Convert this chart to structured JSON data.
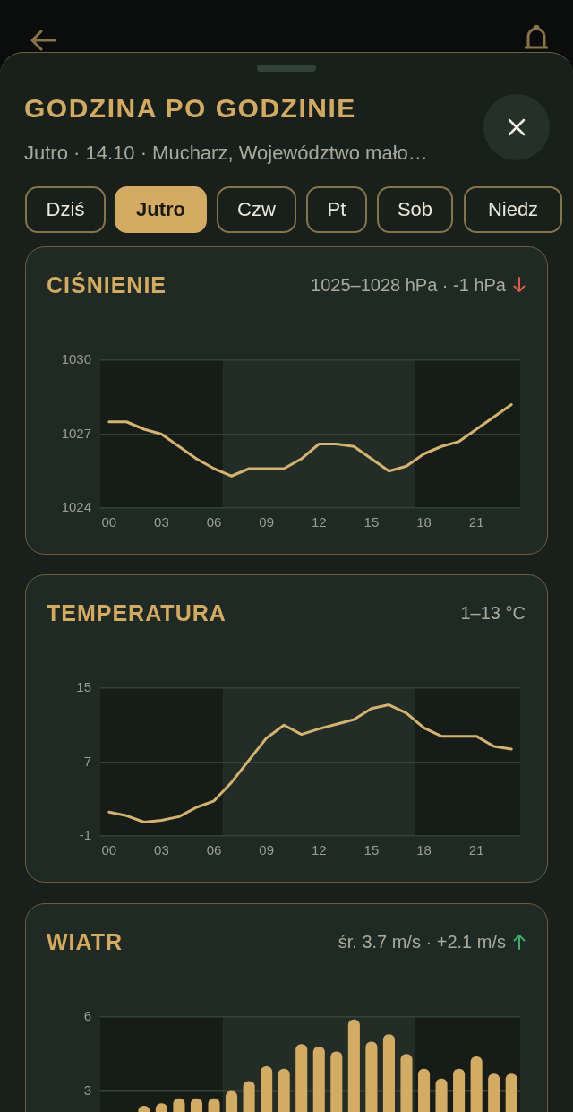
{
  "chart_data": [
    {
      "type": "other",
      "title": "GODZINA PO GODZINIE",
      "subtitle": "Jutro · 14.10 · Mucharz, Województwo mało…",
      "annotations": [
        "Dziś",
        "Jutro",
        "Czw",
        "Pt",
        "Sob",
        "Niedz"
      ]
    },
    {
      "type": "line",
      "title": "CIŚNIENIE",
      "subtitle": "1025–1028 hPa · -1 hPa",
      "x": [
        0,
        1,
        2,
        3,
        4,
        5,
        6,
        7,
        8,
        9,
        10,
        11,
        12,
        13,
        14,
        15,
        16,
        17,
        18,
        19,
        20,
        21,
        22,
        23
      ],
      "series": [
        {
          "color": "#d6b26a",
          "values": [
            1027.5,
            1027.5,
            1027.2,
            1027.0,
            1026.5,
            1026.0,
            1025.6,
            1025.3,
            1025.6,
            1025.6,
            1025.6,
            1026.0,
            1026.6,
            1026.6,
            1026.5,
            1026.0,
            1025.5,
            1025.7,
            1026.2,
            1026.5,
            1026.7,
            1027.2,
            1027.7,
            1028.2
          ]
        }
      ],
      "xlim": [
        -0.5,
        23.5
      ],
      "xticks": [
        {
          "value": 0,
          "label": "00"
        },
        {
          "value": 3,
          "label": "03"
        },
        {
          "value": 6,
          "label": "06"
        },
        {
          "value": 9,
          "label": "09"
        },
        {
          "value": 12,
          "label": "12"
        },
        {
          "value": 15,
          "label": "15"
        },
        {
          "value": 18,
          "label": "18"
        },
        {
          "value": 21,
          "label": "21"
        }
      ],
      "ylim": [
        1024,
        1030
      ],
      "yticks": [
        1024,
        1027,
        1030
      ],
      "grid": "y",
      "legend": false,
      "marker": "none",
      "line_style": "solid",
      "bands": [
        {
          "axis": "x",
          "from": -0.5,
          "to": 6.5,
          "color": "#161d18"
        },
        {
          "axis": "x",
          "from": 17.5,
          "to": 23.5,
          "color": "#161d18"
        }
      ]
    },
    {
      "type": "line",
      "title": "TEMPERATURA",
      "subtitle": "1–13 °C",
      "x": [
        0,
        1,
        2,
        3,
        4,
        5,
        6,
        7,
        8,
        9,
        10,
        11,
        12,
        13,
        14,
        15,
        16,
        17,
        18,
        19,
        20,
        21,
        22,
        23
      ],
      "series": [
        {
          "color": "#d6b26a",
          "values": [
            1.6,
            1.2,
            0.5,
            0.7,
            1.1,
            2.1,
            2.8,
            4.8,
            7.2,
            9.6,
            11.0,
            10.0,
            10.6,
            11.1,
            11.6,
            12.8,
            13.2,
            12.3,
            10.7,
            9.8,
            9.8,
            9.8,
            8.7,
            8.4
          ]
        }
      ],
      "xlim": [
        -0.5,
        23.5
      ],
      "xticks": [
        {
          "value": 0,
          "label": "00"
        },
        {
          "value": 3,
          "label": "03"
        },
        {
          "value": 6,
          "label": "06"
        },
        {
          "value": 9,
          "label": "09"
        },
        {
          "value": 12,
          "label": "12"
        },
        {
          "value": 15,
          "label": "15"
        },
        {
          "value": 18,
          "label": "18"
        },
        {
          "value": 21,
          "label": "21"
        }
      ],
      "ylim": [
        -1,
        15
      ],
      "yticks": [
        -1,
        7,
        15
      ],
      "grid": "y",
      "legend": false,
      "marker": "none",
      "line_style": "solid",
      "bands": [
        {
          "axis": "x",
          "from": -0.5,
          "to": 6.5,
          "color": "#161d18"
        },
        {
          "axis": "x",
          "from": 17.5,
          "to": 23.5,
          "color": "#161d18"
        }
      ]
    },
    {
      "type": "bar",
      "title": "WIATR",
      "subtitle": "śr. 3.7 m/s · +2.1 m/s",
      "categories": [
        null,
        null,
        null,
        null,
        null,
        null,
        null,
        null,
        null,
        null,
        null,
        null,
        null,
        null,
        null,
        null,
        null,
        null,
        null,
        null,
        null,
        null,
        null,
        null
      ],
      "series": [
        {
          "color": "#d4ab62",
          "values": [
            null,
            null,
            2.4,
            2.5,
            2.7,
            2.7,
            2.7,
            3.0,
            3.4,
            4.0,
            3.9,
            4.9,
            4.8,
            4.6,
            5.9,
            5.0,
            5.3,
            4.5,
            3.9,
            3.5,
            3.9,
            4.4,
            3.7,
            3.7
          ]
        }
      ],
      "ylim": [
        0,
        6
      ],
      "yticks": [
        3,
        6
      ],
      "grid": "y",
      "legend": false
    }
  ]
}
